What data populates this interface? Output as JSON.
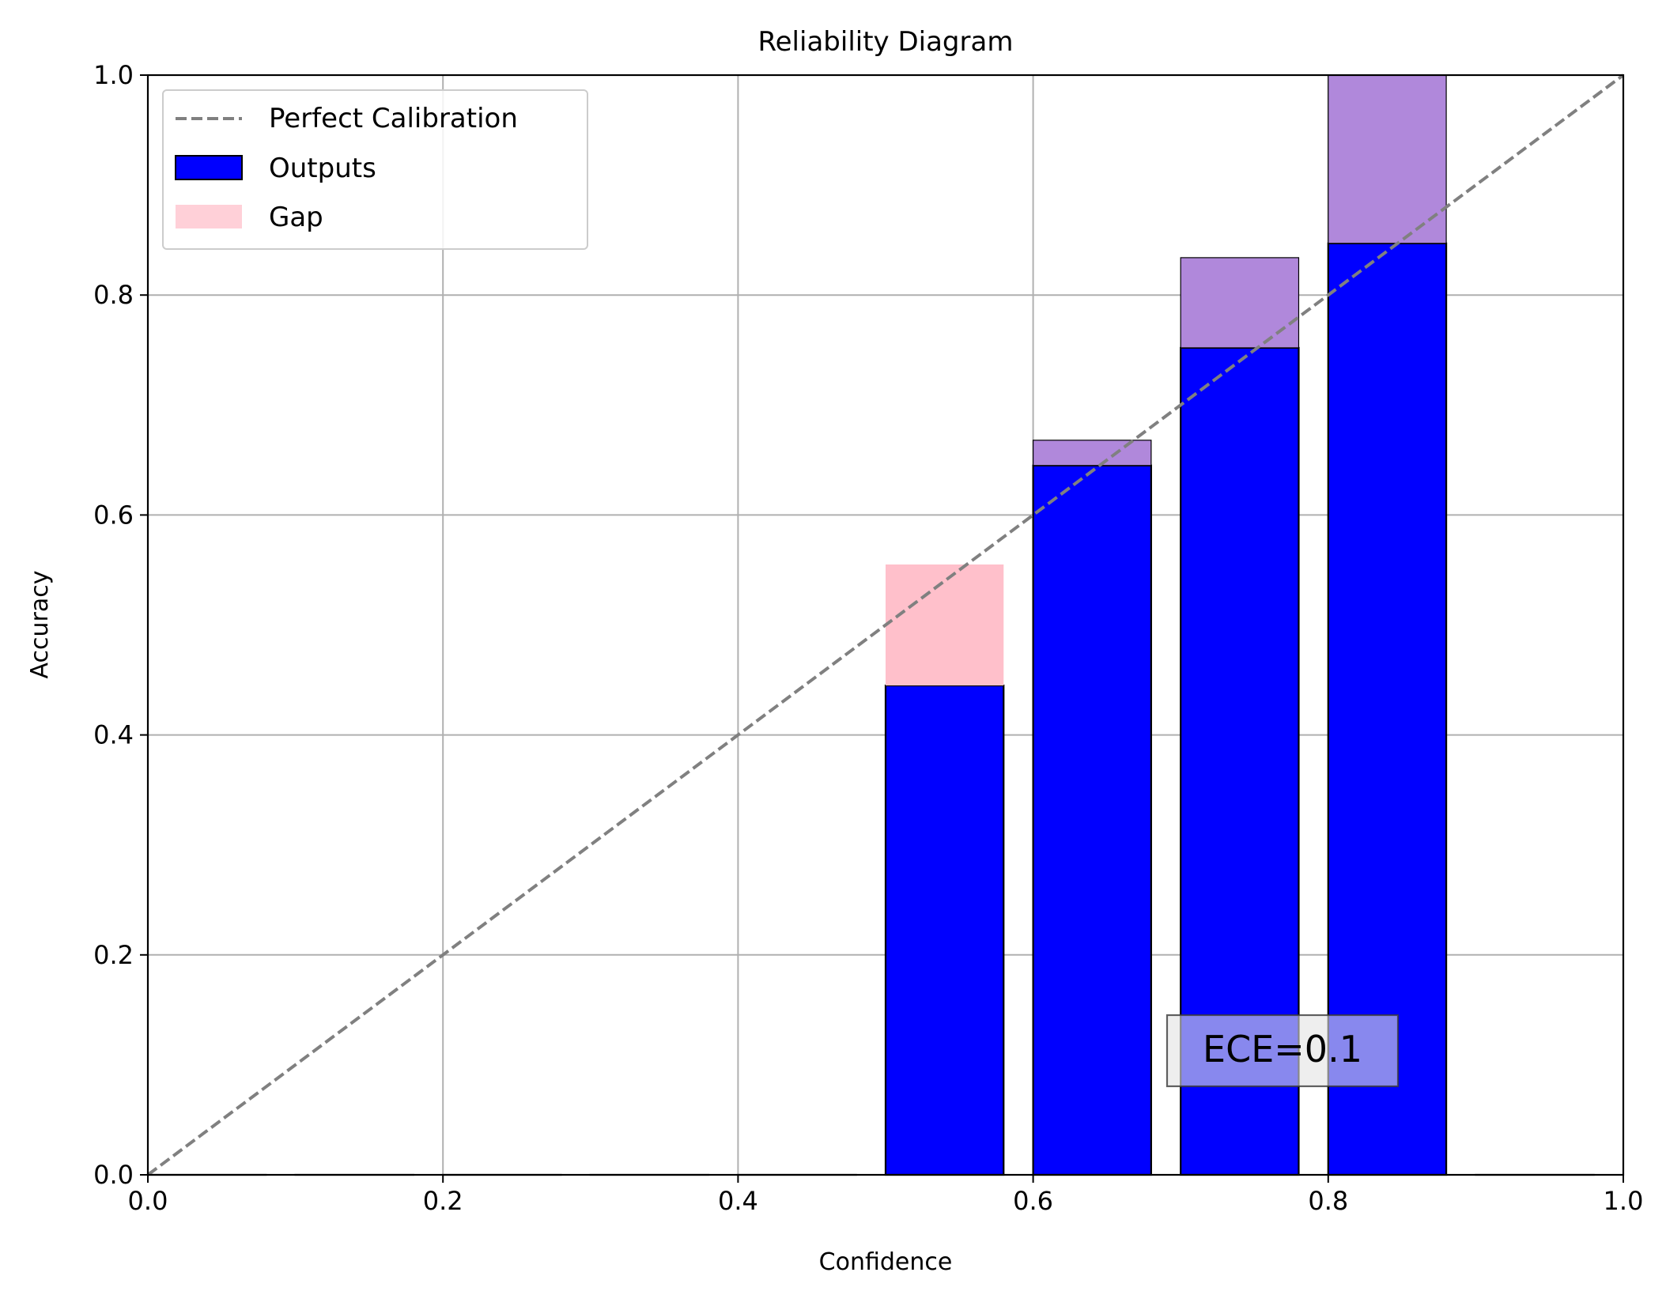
{
  "chart_data": {
    "type": "bar",
    "title": "Reliability Diagram",
    "xlabel": "Confidence",
    "ylabel": "Accuracy",
    "xlim": [
      0.0,
      1.0
    ],
    "ylim": [
      0.0,
      1.0
    ],
    "xticks": [
      "0.0",
      "0.2",
      "0.4",
      "0.6",
      "0.8",
      "1.0"
    ],
    "yticks": [
      "0.0",
      "0.2",
      "0.4",
      "0.6",
      "0.8",
      "1.0"
    ],
    "grid": true,
    "legend_position": "top-left",
    "bin_width": 0.1,
    "bar_width": 0.08,
    "bins": [
      0.0,
      0.1,
      0.2,
      0.3,
      0.4,
      0.5,
      0.6,
      0.7,
      0.8,
      0.9
    ],
    "series": [
      {
        "name": "Outputs",
        "color": "#0000ff",
        "values": [
          0.0,
          0.0,
          0.0,
          0.0,
          0.0,
          0.445,
          0.645,
          0.752,
          0.847,
          0.0
        ]
      },
      {
        "name": "Gap",
        "color": "#ffc0cb",
        "overlap_color": "#b088db",
        "values": [
          0.0,
          0.0,
          0.0,
          0.0,
          0.0,
          0.555,
          0.668,
          0.834,
          1.0,
          0.0
        ]
      }
    ],
    "reference_line": {
      "name": "Perfect Calibration",
      "color": "#808080",
      "x": [
        0.0,
        1.0
      ],
      "y": [
        0.0,
        1.0
      ]
    },
    "legend": [
      "Perfect Calibration",
      "Outputs",
      "Gap"
    ],
    "annotation": {
      "text": "ECE=0.1",
      "x": 0.78,
      "y": 0.11
    }
  }
}
